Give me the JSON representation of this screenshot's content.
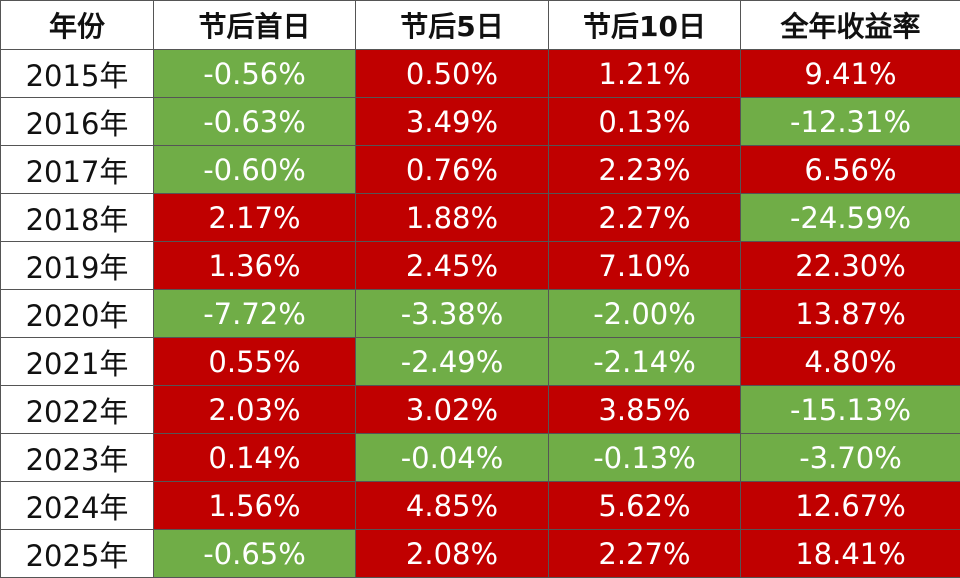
{
  "table": {
    "header": [
      "年份",
      "节后首日",
      "节后5日",
      "节后10日",
      "全年收益率"
    ],
    "rows": [
      [
        "2015年",
        "-0.56%",
        "0.50%",
        "1.21%",
        "9.41%"
      ],
      [
        "2016年",
        "-0.63%",
        "3.49%",
        "0.13%",
        "-12.31%"
      ],
      [
        "2017年",
        "-0.60%",
        "0.76%",
        "2.23%",
        "6.56%"
      ],
      [
        "2018年",
        "2.17%",
        "1.88%",
        "2.27%",
        "-24.59%"
      ],
      [
        "2019年",
        "1.36%",
        "2.45%",
        "7.10%",
        "22.30%"
      ],
      [
        "2020年",
        "-7.72%",
        "-3.38%",
        "-2.00%",
        "13.87%"
      ],
      [
        "2021年",
        "0.55%",
        "-2.49%",
        "-2.14%",
        "4.80%"
      ],
      [
        "2022年",
        "2.03%",
        "3.02%",
        "3.85%",
        "-15.13%"
      ],
      [
        "2023年",
        "0.14%",
        "-0.04%",
        "-0.13%",
        "-3.70%"
      ],
      [
        "2024年",
        "1.56%",
        "4.85%",
        "5.62%",
        "12.67%"
      ],
      [
        "2025年",
        "-0.65%",
        "2.08%",
        "2.27%",
        "18.41%"
      ]
    ]
  }
}
